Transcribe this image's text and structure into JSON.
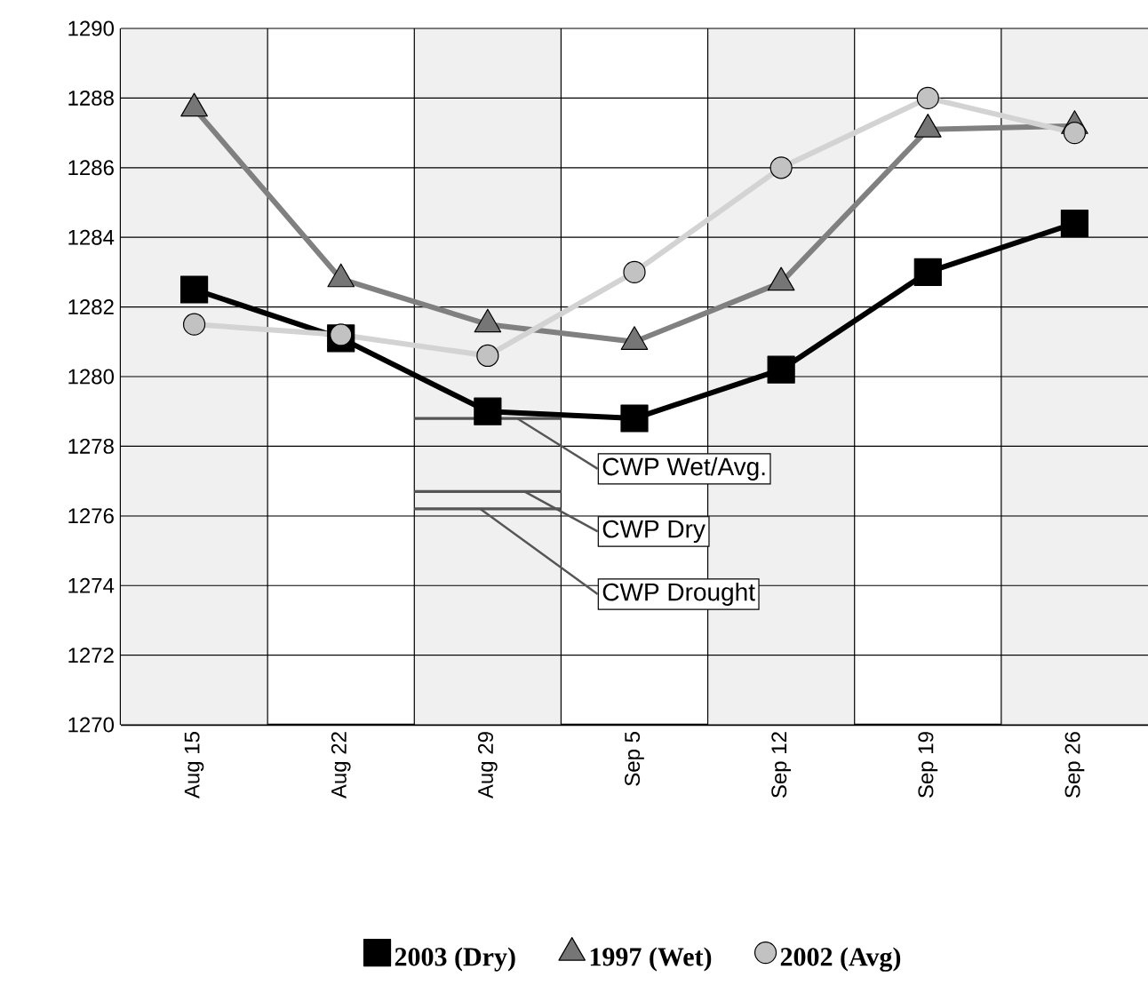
{
  "chart_data": {
    "type": "line",
    "categories": [
      "Aug 15",
      "Aug 22",
      "Aug 29",
      "Sep 5",
      "Sep 12",
      "Sep 19",
      "Sep 26"
    ],
    "series": [
      {
        "name": "2003 (Dry)",
        "color": "#000000",
        "marker": "square",
        "values": [
          1282.5,
          1281.1,
          1279.0,
          1278.8,
          1280.2,
          1283.0,
          1284.4
        ]
      },
      {
        "name": "1997 (Wet)",
        "color": "#808080",
        "marker": "triangle",
        "values": [
          1287.7,
          1282.8,
          1281.5,
          1281.0,
          1282.7,
          1287.1,
          1287.2
        ]
      },
      {
        "name": "2002 (Avg)",
        "color": "#d3d3d3",
        "marker": "circle",
        "values": [
          1281.5,
          1281.2,
          1280.6,
          1283.0,
          1286.0,
          1288.0,
          1287.0
        ]
      }
    ],
    "ylim": [
      1270,
      1290
    ],
    "yticks": [
      1270,
      1272,
      1274,
      1276,
      1278,
      1280,
      1282,
      1284,
      1286,
      1288,
      1290
    ],
    "grid": true,
    "legend": "bottom",
    "ref_lines": [
      {
        "axis": "y",
        "value": 1278.8,
        "label": "CWP Wet/Avg.",
        "color": "#555555"
      },
      {
        "axis": "y",
        "value": 1276.7,
        "label": "CWP Dry",
        "color": "#555555"
      },
      {
        "axis": "y",
        "value": 1276.2,
        "label": "CWP Drought",
        "color": "#555555"
      }
    ]
  }
}
